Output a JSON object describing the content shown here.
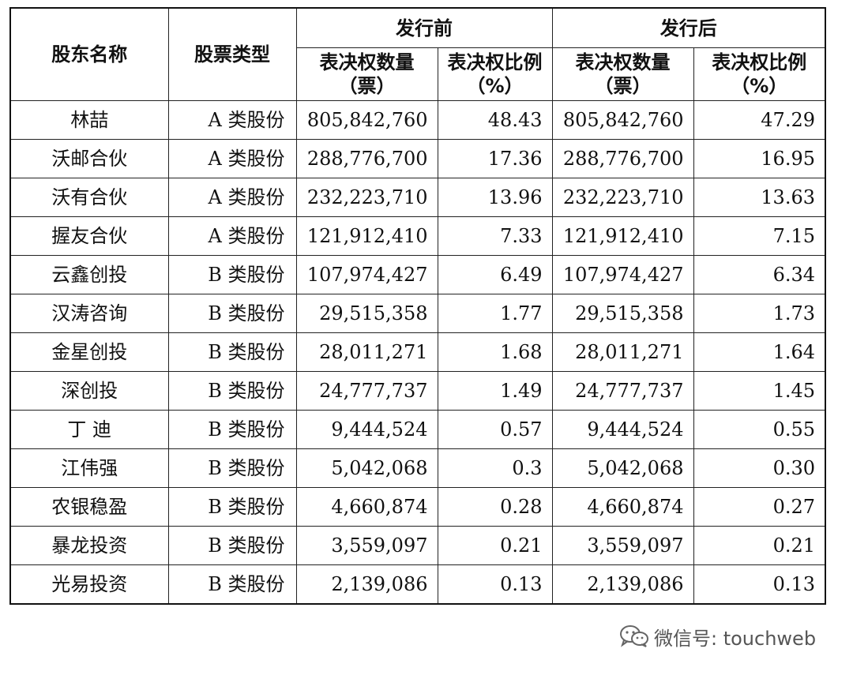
{
  "table": {
    "headers": {
      "shareholder_name": "股东名称",
      "share_type": "股票类型",
      "before_issue": "发行前",
      "after_issue": "发行后",
      "votes_before": "表决权数量（票）",
      "ratio_before": "表决权比例（%）",
      "votes_after": "表决权数量（票）",
      "ratio_after": "表决权比例（%）"
    },
    "rows": [
      {
        "name": "林喆",
        "type": "A 类股份",
        "votes_before": "805,842,760",
        "ratio_before": "48.43",
        "votes_after": "805,842,760",
        "ratio_after": "47.29"
      },
      {
        "name": "沃邮合伙",
        "type": "A 类股份",
        "votes_before": "288,776,700",
        "ratio_before": "17.36",
        "votes_after": "288,776,700",
        "ratio_after": "16.95"
      },
      {
        "name": "沃有合伙",
        "type": "A 类股份",
        "votes_before": "232,223,710",
        "ratio_before": "13.96",
        "votes_after": "232,223,710",
        "ratio_after": "13.63"
      },
      {
        "name": "握友合伙",
        "type": "A 类股份",
        "votes_before": "121,912,410",
        "ratio_before": "7.33",
        "votes_after": "121,912,410",
        "ratio_after": "7.15"
      },
      {
        "name": "云鑫创投",
        "type": "B 类股份",
        "votes_before": "107,974,427",
        "ratio_before": "6.49",
        "votes_after": "107,974,427",
        "ratio_after": "6.34"
      },
      {
        "name": "汉涛咨询",
        "type": "B 类股份",
        "votes_before": "29,515,358",
        "ratio_before": "1.77",
        "votes_after": "29,515,358",
        "ratio_after": "1.73"
      },
      {
        "name": "金星创投",
        "type": "B 类股份",
        "votes_before": "28,011,271",
        "ratio_before": "1.68",
        "votes_after": "28,011,271",
        "ratio_after": "1.64"
      },
      {
        "name": "深创投",
        "type": "B 类股份",
        "votes_before": "24,777,737",
        "ratio_before": "1.49",
        "votes_after": "24,777,737",
        "ratio_after": "1.45"
      },
      {
        "name": "丁 迪",
        "type": "B 类股份",
        "votes_before": "9,444,524",
        "ratio_before": "0.57",
        "votes_after": "9,444,524",
        "ratio_after": "0.55"
      },
      {
        "name": "江伟强",
        "type": "B 类股份",
        "votes_before": "5,042,068",
        "ratio_before": "0.3",
        "votes_after": "5,042,068",
        "ratio_after": "0.30"
      },
      {
        "name": "农银稳盈",
        "type": "B 类股份",
        "votes_before": "4,660,874",
        "ratio_before": "0.28",
        "votes_after": "4,660,874",
        "ratio_after": "0.27"
      },
      {
        "name": "暴龙投资",
        "type": "B 类股份",
        "votes_before": "3,559,097",
        "ratio_before": "0.21",
        "votes_after": "3,559,097",
        "ratio_after": "0.21"
      },
      {
        "name": "光易投资",
        "type": "B 类股份",
        "votes_before": "2,139,086",
        "ratio_before": "0.13",
        "votes_after": "2,139,086",
        "ratio_after": "0.13"
      }
    ]
  },
  "watermark": {
    "icon": "wechat-icon",
    "text": "微信号: touchweb"
  }
}
